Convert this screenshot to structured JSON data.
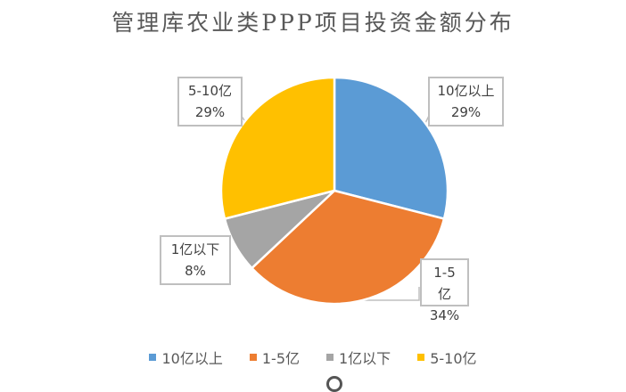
{
  "chart_data": {
    "type": "pie",
    "title": "管理库农业类PPP项目投资金额分布",
    "categories": [
      "10亿以上",
      "1-5亿",
      "1亿以下",
      "5-10亿"
    ],
    "values": [
      29,
      34,
      8,
      29
    ],
    "unit": "%",
    "colors": [
      "#5b9bd5",
      "#ed7d31",
      "#a5a5a5",
      "#ffc000"
    ],
    "data_labels": [
      {
        "category": "10亿以上",
        "percent": "29%"
      },
      {
        "category": "1-5亿",
        "percent": "34%"
      },
      {
        "category": "1亿以下",
        "percent": "8%"
      },
      {
        "category": "5-10亿",
        "percent": "29%"
      }
    ],
    "legend_position": "bottom",
    "start_angle": "12 o'clock, clockwise"
  },
  "title": "管理库农业类PPP项目投资金额分布",
  "callouts": [
    {
      "category": "10亿以上",
      "percent": "29%"
    },
    {
      "category": "1-5亿",
      "percent": "34%"
    },
    {
      "category": "1亿以下",
      "percent": "8%"
    },
    {
      "category": "5-10亿",
      "percent": "29%"
    }
  ],
  "legend": [
    {
      "label": "10亿以上",
      "color": "#5b9bd5"
    },
    {
      "label": "1-5亿",
      "color": "#ed7d31"
    },
    {
      "label": "1亿以下",
      "color": "#a5a5a5"
    },
    {
      "label": "5-10亿",
      "color": "#ffc000"
    }
  ]
}
